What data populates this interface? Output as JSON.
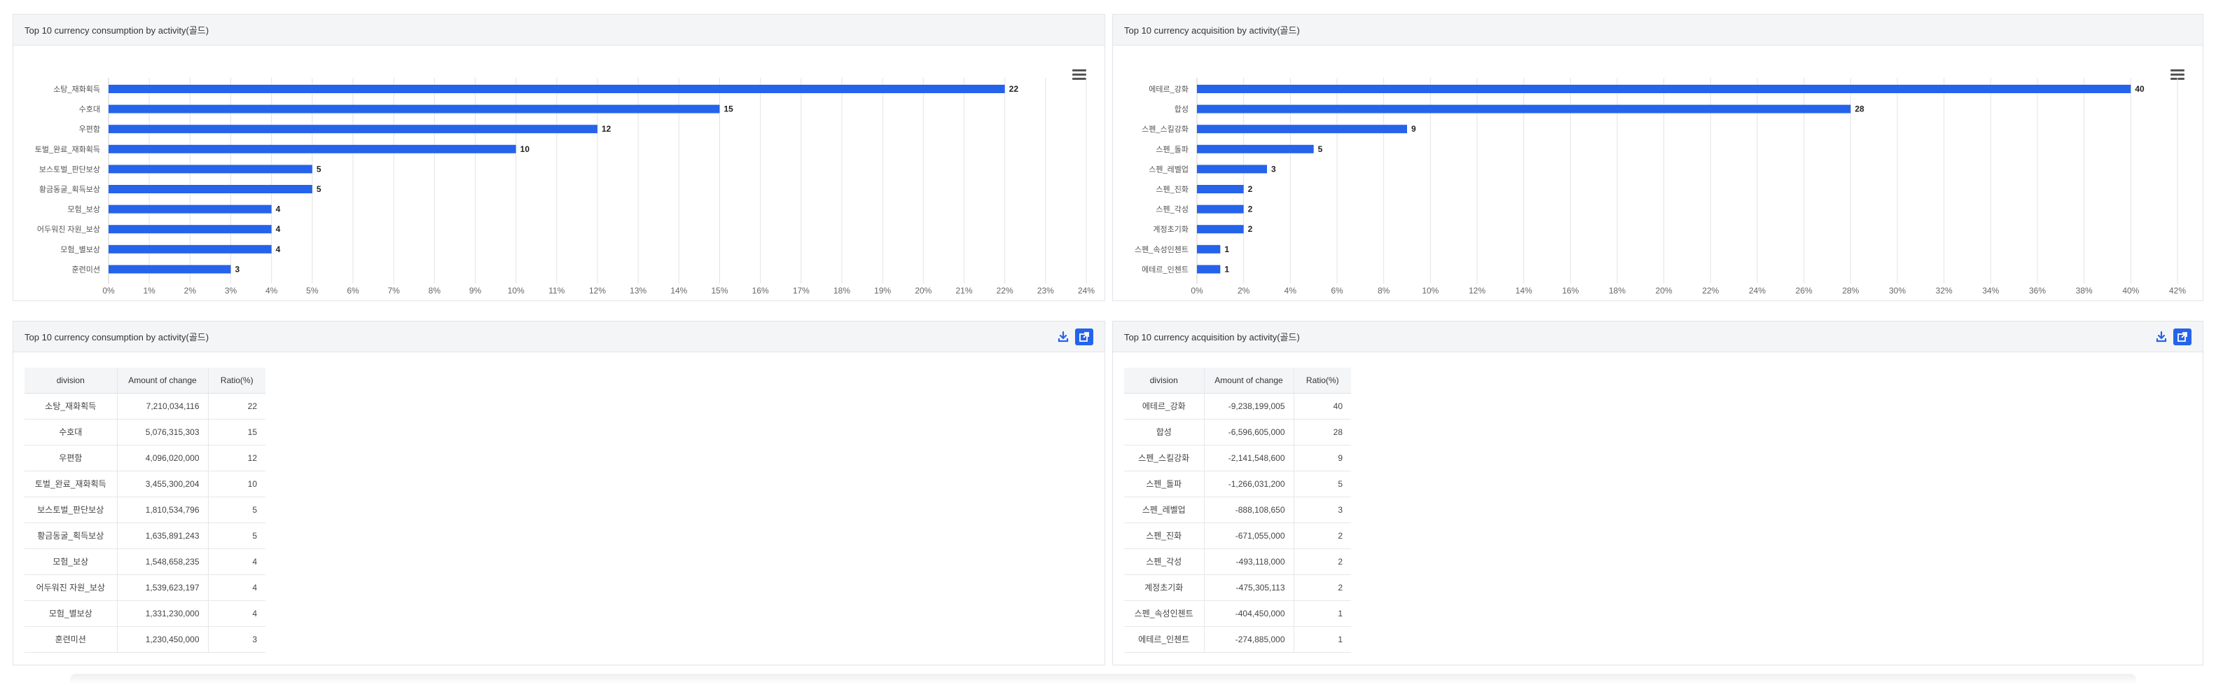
{
  "panels": {
    "consumption_chart": {
      "title": "Top 10 currency consumption by activity(골드)",
      "menu_icon": "hamburger-menu-icon"
    },
    "acquisition_chart": {
      "title": "Top 10 currency acquisition by activity(골드)",
      "menu_icon": "hamburger-menu-icon"
    },
    "consumption_table": {
      "title": "Top 10 currency consumption by activity(골드)",
      "download_icon": "download-icon",
      "export_icon": "external-link-icon"
    },
    "acquisition_table": {
      "title": "Top 10 currency acquisition by activity(골드)",
      "download_icon": "download-icon",
      "export_icon": "external-link-icon"
    }
  },
  "colors": {
    "bar": "#2563eb",
    "accent": "#2563eb",
    "header_bg": "#f4f5f7",
    "grid": "#e3e3e3"
  },
  "table_headers": [
    "division",
    "Amount of change",
    "Ratio(%)"
  ],
  "consumption_rows": [
    [
      "소탕_재화획득",
      "7,210,034,116",
      "22"
    ],
    [
      "수호대",
      "5,076,315,303",
      "15"
    ],
    [
      "우편함",
      "4,096,020,000",
      "12"
    ],
    [
      "토벌_완료_재화획득",
      "3,455,300,204",
      "10"
    ],
    [
      "보스토벌_판단보상",
      "1,810,534,796",
      "5"
    ],
    [
      "황금동굴_획득보상",
      "1,635,891,243",
      "5"
    ],
    [
      "모험_보상",
      "1,548,658,235",
      "4"
    ],
    [
      "어두워진 자원_보상",
      "1,539,623,197",
      "4"
    ],
    [
      "모험_별보상",
      "1,331,230,000",
      "4"
    ],
    [
      "훈련미션",
      "1,230,450,000",
      "3"
    ]
  ],
  "acquisition_rows": [
    [
      "에테르_강화",
      "-9,238,199,005",
      "40"
    ],
    [
      "합성",
      "-6,596,605,000",
      "28"
    ],
    [
      "스펜_스킬강화",
      "-2,141,548,600",
      "9"
    ],
    [
      "스펜_돌파",
      "-1,266,031,200",
      "5"
    ],
    [
      "스펜_레벨업",
      "-888,108,650",
      "3"
    ],
    [
      "스펜_진화",
      "-671,055,000",
      "2"
    ],
    [
      "스펜_각성",
      "-493,118,000",
      "2"
    ],
    [
      "계정초기화",
      "-475,305,113",
      "2"
    ],
    [
      "스펜_속성인첸트",
      "-404,450,000",
      "1"
    ],
    [
      "에테르_인첸트",
      "-274,885,000",
      "1"
    ]
  ],
  "chart_data": [
    {
      "type": "bar",
      "orientation": "horizontal",
      "title": "Top 10 currency consumption by activity(골드)",
      "categories": [
        "소탕_재화획득",
        "수호대",
        "우편함",
        "토벌_완료_재화획득",
        "보스토벌_판단보상",
        "황금동굴_획득보상",
        "모험_보상",
        "어두워진 자원_보상",
        "모험_별보상",
        "훈련미션"
      ],
      "values": [
        22,
        15,
        12,
        10,
        5,
        5,
        4,
        4,
        4,
        3
      ],
      "xlim": [
        0,
        24
      ],
      "x_ticks": [
        "0%",
        "1%",
        "2%",
        "3%",
        "4%",
        "5%",
        "6%",
        "7%",
        "8%",
        "9%",
        "10%",
        "11%",
        "12%",
        "13%",
        "14%",
        "15%",
        "16%",
        "17%",
        "18%",
        "19%",
        "20%",
        "21%",
        "22%",
        "23%",
        "24%"
      ],
      "grid": true,
      "legend": "none"
    },
    {
      "type": "bar",
      "orientation": "horizontal",
      "title": "Top 10 currency acquisition by activity(골드)",
      "categories": [
        "에테르_강화",
        "합성",
        "스펜_스킬강화",
        "스펜_돌파",
        "스펜_레벨업",
        "스펜_진화",
        "스펜_각성",
        "계정초기화",
        "스펜_속성인첸트",
        "에테르_인첸트"
      ],
      "values": [
        40,
        28,
        9,
        5,
        3,
        2,
        2,
        2,
        1,
        1
      ],
      "xlim": [
        0,
        42
      ],
      "x_ticks": [
        "0%",
        "2%",
        "4%",
        "6%",
        "8%",
        "10%",
        "12%",
        "14%",
        "16%",
        "18%",
        "20%",
        "22%",
        "24%",
        "26%",
        "28%",
        "30%",
        "32%",
        "34%",
        "36%",
        "38%",
        "40%",
        "42%"
      ],
      "grid": true,
      "legend": "none"
    }
  ]
}
